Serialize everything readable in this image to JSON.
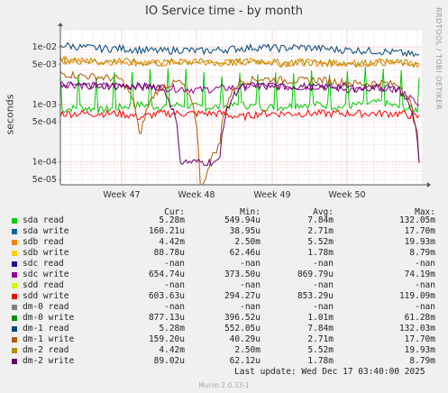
{
  "title": "IO Service time - by month",
  "side_credit": "RRDTOOL / TOBI OETIKER",
  "y_axis_label": "seconds",
  "columns": {
    "cur": "Cur:",
    "min": "Min:",
    "avg": "Avg:",
    "max": "Max:"
  },
  "legend": [
    {
      "name": "sda read",
      "color": "#00cc00",
      "cur": "5.28m",
      "min": "549.94u",
      "avg": "7.84m",
      "max": "132.05m"
    },
    {
      "name": "sda write",
      "color": "#0066b3",
      "cur": "160.21u",
      "min": "38.95u",
      "avg": "2.71m",
      "max": "17.70m"
    },
    {
      "name": "sdb read",
      "color": "#ff8000",
      "cur": "4.42m",
      "min": "2.50m",
      "avg": "5.52m",
      "max": "19.93m"
    },
    {
      "name": "sdb write",
      "color": "#ffcc00",
      "cur": "88.78u",
      "min": "62.46u",
      "avg": "1.78m",
      "max": "8.79m"
    },
    {
      "name": "sdc read",
      "color": "#330099",
      "cur": "-nan",
      "min": "-nan",
      "avg": "-nan",
      "max": "-nan"
    },
    {
      "name": "sdc write",
      "color": "#990099",
      "cur": "654.74u",
      "min": "373.50u",
      "avg": "869.79u",
      "max": "74.19m"
    },
    {
      "name": "sdd read",
      "color": "#ccff00",
      "cur": "-nan",
      "min": "-nan",
      "avg": "-nan",
      "max": "-nan"
    },
    {
      "name": "sdd write",
      "color": "#ff0000",
      "cur": "603.63u",
      "min": "294.27u",
      "avg": "853.29u",
      "max": "119.09m"
    },
    {
      "name": "dm-0 read",
      "color": "#808080",
      "cur": "-nan",
      "min": "-nan",
      "avg": "-nan",
      "max": "-nan"
    },
    {
      "name": "dm-0 write",
      "color": "#008f00",
      "cur": "877.13u",
      "min": "396.52u",
      "avg": "1.01m",
      "max": "61.28m"
    },
    {
      "name": "dm-1 read",
      "color": "#00487d",
      "cur": "5.28m",
      "min": "552.05u",
      "avg": "7.84m",
      "max": "132.03m"
    },
    {
      "name": "dm-1 write",
      "color": "#b35a00",
      "cur": "159.20u",
      "min": "40.29u",
      "avg": "2.71m",
      "max": "17.70m"
    },
    {
      "name": "dm-2 read",
      "color": "#b38f00",
      "cur": "4.42m",
      "min": "2.50m",
      "avg": "5.52m",
      "max": "19.93m"
    },
    {
      "name": "dm-2 write",
      "color": "#6b006b",
      "cur": "89.02u",
      "min": "62.12u",
      "avg": "1.78m",
      "max": "8.79m"
    }
  ],
  "last_update": "Last update:  Wed Dec 17 03:40:00 2025",
  "munin_version": "Munin 2.0.33-1",
  "chart_data": {
    "type": "line",
    "title": "IO Service time - by month",
    "ylabel": "seconds",
    "y_scale": "log",
    "ylim": [
      4e-05,
      0.02
    ],
    "y_ticks": [
      {
        "value": 5e-05,
        "label": "5e-05"
      },
      {
        "value": 0.0001,
        "label": "1e-04"
      },
      {
        "value": 0.0005,
        "label": "5e-04"
      },
      {
        "value": 0.001,
        "label": "1e-03"
      },
      {
        "value": 0.005,
        "label": "5e-03"
      },
      {
        "value": 0.01,
        "label": "1e-02"
      }
    ],
    "x_ticks": [
      "Week 47",
      "Week 48",
      "Week 49",
      "Week 50"
    ],
    "grid": true,
    "series": [
      {
        "name": "sda read",
        "color": "#00cc00",
        "values": [
          0.0008,
          0.0009,
          0.0008,
          0.0009,
          0.001,
          0.0009,
          0.001,
          0.0009,
          0.0009,
          0.001,
          0.0009,
          0.0009,
          0.001,
          0.001,
          0.0009,
          0.001,
          0.0011,
          0.0009,
          0.0008
        ]
      },
      {
        "name": "sdb read",
        "color": "#ff8000",
        "values": [
          0.006,
          0.0058,
          0.0055,
          0.0057,
          0.0054,
          0.0052,
          0.0056,
          0.0055,
          0.0053,
          0.0055,
          0.0058,
          0.0052,
          0.0055,
          0.0053,
          0.0054,
          0.0052,
          0.0055,
          0.0054,
          0.005
        ]
      },
      {
        "name": "sdc write",
        "color": "#990099",
        "values": [
          0.0023,
          0.0022,
          0.0021,
          0.0022,
          0.0021,
          0.002,
          0.0019,
          0.0018,
          0.0019,
          0.002,
          0.0022,
          0.0021,
          0.002,
          0.0021,
          0.0019,
          0.0018,
          0.002,
          0.0018,
          0.0009
        ]
      },
      {
        "name": "sdd write",
        "color": "#ff0000",
        "values": [
          0.0007,
          0.0007,
          0.0007,
          0.0007,
          0.0006,
          0.0007,
          0.0007,
          0.0007,
          0.0007,
          0.0006,
          0.0007,
          0.0007,
          0.0007,
          0.0007,
          0.0007,
          0.0007,
          0.0007,
          0.0007,
          0.0006
        ]
      },
      {
        "name": "dm-1 read",
        "color": "#00487d",
        "values": [
          0.011,
          0.01,
          0.0095,
          0.0095,
          0.009,
          0.0085,
          0.009,
          0.0085,
          0.009,
          0.0095,
          0.01,
          0.0095,
          0.01,
          0.0095,
          0.009,
          0.0088,
          0.0085,
          0.008,
          0.007
        ]
      },
      {
        "name": "dm-1 write",
        "color": "#b35a00",
        "values": [
          0.0035,
          0.0032,
          0.003,
          0.0028,
          0.0002,
          0.002,
          0.0025,
          0.0,
          0.0002,
          0.0025,
          0.0028,
          0.0027,
          0.0026,
          0.0027,
          0.0025,
          0.0023,
          0.0024,
          0.0022,
          0.0001
        ]
      },
      {
        "name": "dm-2 read",
        "color": "#b38f00",
        "values": [
          0.006,
          0.0058,
          0.0056,
          0.0057,
          0.0054,
          0.0053,
          0.0056,
          0.0055,
          0.0053,
          0.0055,
          0.0058,
          0.0053,
          0.0055,
          0.0053,
          0.0054,
          0.0052,
          0.0055,
          0.0054,
          0.005
        ]
      },
      {
        "name": "dm-2 write",
        "color": "#6b006b",
        "values": [
          0.0022,
          0.0022,
          0.0021,
          0.0021,
          0.002,
          0.0021,
          0.0001,
          0.0001,
          0.0001,
          0.002,
          0.0021,
          0.002,
          0.0021,
          0.002,
          0.0021,
          0.0019,
          0.002,
          0.0018,
          0.0001
        ]
      }
    ]
  }
}
